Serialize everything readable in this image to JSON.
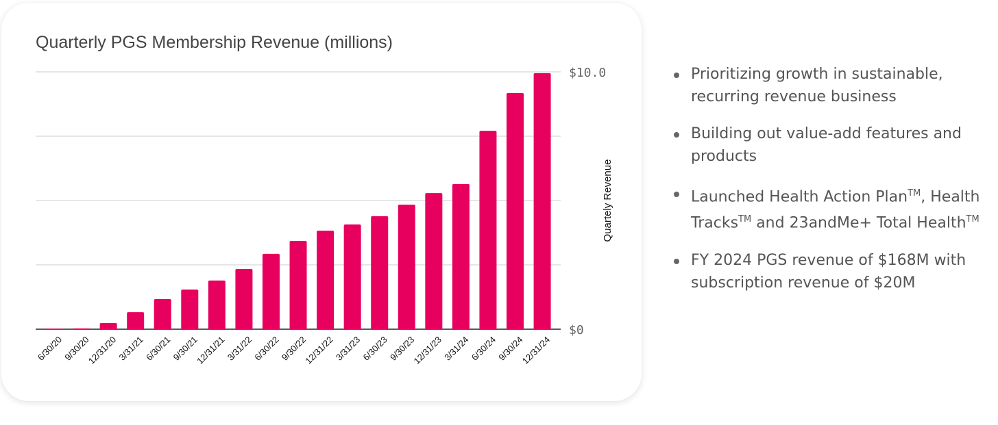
{
  "chart_data": {
    "type": "bar",
    "title": "Quarterly PGS Membership Revenue (millions)",
    "xlabel": "",
    "ylabel": "Quartely Revenue",
    "ylim": [
      0,
      10
    ],
    "yticks": [
      0,
      2.5,
      5,
      7.5,
      10
    ],
    "ytick_labels": [
      "$0",
      "",
      "",
      "",
      "$10.0"
    ],
    "y_axis_side": "right",
    "grid": true,
    "color": "#E8005F",
    "categories": [
      "6/30/20",
      "9/30/20",
      "12/31/20",
      "3/31/21",
      "6/30/21",
      "9/30/21",
      "12/31/21",
      "3/31/22",
      "6/30/22",
      "9/30/22",
      "12/31/22",
      "3/31/23",
      "6/30/23",
      "9/30/23",
      "12/31/23",
      "3/31/24",
      "6/30/24",
      "9/30/24",
      "12/31/24"
    ],
    "values": [
      0,
      0.03,
      0.24,
      0.66,
      1.17,
      1.54,
      1.89,
      2.34,
      2.93,
      3.43,
      3.83,
      4.07,
      4.39,
      4.84,
      5.29,
      5.64,
      7.71,
      9.18,
      9.95
    ]
  },
  "bullets": [
    {
      "text": "Prioritizing growth in sustainable, recurring revenue business"
    },
    {
      "text": "Building out value-add features and products"
    },
    {
      "parts": [
        "Launched Health Action Plan",
        "TM",
        ", Health Tracks",
        "TM",
        " and 23andMe+ Total Health",
        "TM"
      ]
    },
    {
      "text": "FY 2024 PGS revenue of $168M with subscription revenue of $20M"
    }
  ]
}
